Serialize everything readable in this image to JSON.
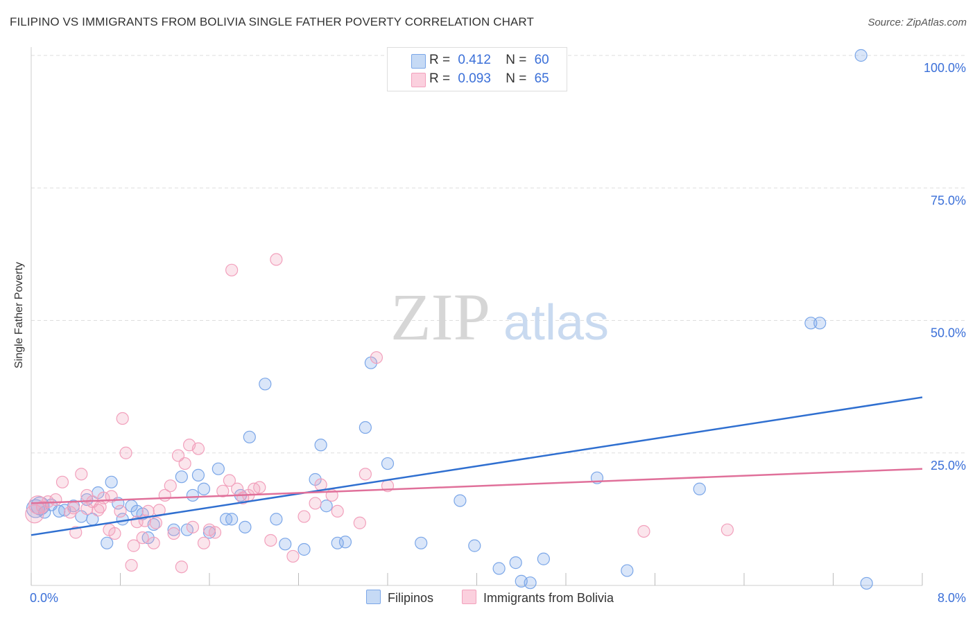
{
  "title": "FILIPINO VS IMMIGRANTS FROM BOLIVIA SINGLE FATHER POVERTY CORRELATION CHART",
  "source": "Source: ZipAtlas.com",
  "watermark": {
    "zip": "ZIP",
    "atlas": "atlas"
  },
  "legend": {
    "r_label": "R =",
    "n_label": "N =",
    "rows": [
      {
        "r": "0.412",
        "n": "60"
      },
      {
        "r": "0.093",
        "n": "65"
      }
    ]
  },
  "chart_data": {
    "type": "scatter",
    "title": "FILIPINO VS IMMIGRANTS FROM BOLIVIA SINGLE FATHER POVERTY CORRELATION CHART",
    "xlabel": "",
    "ylabel": "Single Father Poverty",
    "xlim": [
      0,
      8
    ],
    "ylim": [
      0,
      100
    ],
    "x_tick_labels": [
      "0.0%",
      "8.0%"
    ],
    "y_tick_labels": [
      "100.0%",
      "75.0%",
      "50.0%",
      "25.0%"
    ],
    "y_ticks": [
      100,
      75,
      50,
      25
    ],
    "grid": true,
    "legend_position": "bottom",
    "series": [
      {
        "name": "Filipinos",
        "color": "#7aa6e8",
        "trend_color": "#2f6fd0",
        "trend": {
          "x": [
            0,
            8
          ],
          "y": [
            9.5,
            35.5
          ]
        },
        "points": [
          [
            0.04,
            14.5
          ],
          [
            0.08,
            15
          ],
          [
            0.12,
            13.8
          ],
          [
            0.18,
            15.2
          ],
          [
            0.25,
            14
          ],
          [
            0.3,
            14.2
          ],
          [
            0.38,
            15
          ],
          [
            0.45,
            13
          ],
          [
            0.5,
            16.2
          ],
          [
            0.55,
            12.5
          ],
          [
            0.6,
            17.5
          ],
          [
            0.68,
            8
          ],
          [
            0.72,
            19.5
          ],
          [
            0.78,
            15.5
          ],
          [
            0.82,
            12.5
          ],
          [
            0.9,
            15
          ],
          [
            0.95,
            14
          ],
          [
            1.0,
            13.5
          ],
          [
            1.1,
            11.5
          ],
          [
            1.05,
            9
          ],
          [
            1.28,
            10.5
          ],
          [
            1.35,
            20.5
          ],
          [
            1.4,
            10.5
          ],
          [
            1.45,
            17
          ],
          [
            1.5,
            20.8
          ],
          [
            1.55,
            18.2
          ],
          [
            1.6,
            10
          ],
          [
            1.68,
            22
          ],
          [
            1.75,
            12.5
          ],
          [
            1.8,
            12.5
          ],
          [
            1.92,
            11
          ],
          [
            1.96,
            28
          ],
          [
            1.88,
            17
          ],
          [
            2.1,
            38
          ],
          [
            2.2,
            12.5
          ],
          [
            2.28,
            7.8
          ],
          [
            2.45,
            6.8
          ],
          [
            2.55,
            20
          ],
          [
            2.6,
            26.5
          ],
          [
            2.65,
            15
          ],
          [
            2.75,
            8
          ],
          [
            2.82,
            8.2
          ],
          [
            3.0,
            29.8
          ],
          [
            3.05,
            42
          ],
          [
            3.2,
            23
          ],
          [
            3.5,
            8
          ],
          [
            3.85,
            16
          ],
          [
            3.98,
            7.5
          ],
          [
            4.2,
            3.2
          ],
          [
            4.35,
            4.3
          ],
          [
            4.4,
            0.8
          ],
          [
            4.48,
            0.5
          ],
          [
            4.6,
            5
          ],
          [
            5.08,
            20.3
          ],
          [
            5.35,
            2.8
          ],
          [
            6.0,
            18.2
          ],
          [
            7.0,
            49.5
          ],
          [
            7.08,
            49.5
          ],
          [
            7.45,
            100
          ],
          [
            7.5,
            0.4
          ]
        ]
      },
      {
        "name": "Immigrants from Bolivia",
        "color": "#f2a0bc",
        "trend_color": "#e0709a",
        "trend": {
          "x": [
            0,
            8
          ],
          "y": [
            15.5,
            22
          ]
        },
        "points": [
          [
            0.03,
            13.5
          ],
          [
            0.06,
            15.2
          ],
          [
            0.1,
            14.8
          ],
          [
            0.15,
            15.8
          ],
          [
            0.22,
            16.2
          ],
          [
            0.28,
            19.5
          ],
          [
            0.35,
            13.8
          ],
          [
            0.4,
            10
          ],
          [
            0.45,
            21
          ],
          [
            0.5,
            17
          ],
          [
            0.55,
            15.8
          ],
          [
            0.6,
            14.2
          ],
          [
            0.65,
            16.5
          ],
          [
            0.7,
            10.5
          ],
          [
            0.72,
            16.8
          ],
          [
            0.75,
            9.8
          ],
          [
            0.8,
            14
          ],
          [
            0.82,
            31.5
          ],
          [
            0.85,
            25
          ],
          [
            0.9,
            3.8
          ],
          [
            0.92,
            7.5
          ],
          [
            0.95,
            12
          ],
          [
            1.0,
            9
          ],
          [
            1.05,
            14
          ],
          [
            1.1,
            8
          ],
          [
            1.12,
            11.8
          ],
          [
            1.15,
            14.2
          ],
          [
            1.2,
            17
          ],
          [
            1.25,
            18.8
          ],
          [
            1.28,
            9.8
          ],
          [
            1.32,
            24.5
          ],
          [
            1.35,
            3.5
          ],
          [
            1.38,
            23
          ],
          [
            1.42,
            26.5
          ],
          [
            1.45,
            11
          ],
          [
            1.5,
            25.8
          ],
          [
            1.55,
            8
          ],
          [
            1.6,
            10.5
          ],
          [
            1.65,
            10
          ],
          [
            1.72,
            17.8
          ],
          [
            1.78,
            19.8
          ],
          [
            1.8,
            59.5
          ],
          [
            1.85,
            18.2
          ],
          [
            1.9,
            16.5
          ],
          [
            1.95,
            17
          ],
          [
            2.0,
            18.2
          ],
          [
            2.15,
            8.5
          ],
          [
            2.2,
            61.5
          ],
          [
            2.35,
            5.5
          ],
          [
            2.45,
            13
          ],
          [
            2.55,
            15.5
          ],
          [
            2.6,
            19
          ],
          [
            2.7,
            17
          ],
          [
            2.75,
            14
          ],
          [
            2.95,
            11.8
          ],
          [
            3.0,
            21
          ],
          [
            3.1,
            43
          ],
          [
            3.2,
            18.8
          ],
          [
            5.5,
            10.2
          ],
          [
            6.25,
            10.5
          ],
          [
            0.5,
            14.5
          ],
          [
            0.62,
            14.8
          ],
          [
            1.02,
            12.2
          ],
          [
            0.38,
            14.6
          ],
          [
            2.05,
            18.5
          ]
        ]
      }
    ]
  }
}
